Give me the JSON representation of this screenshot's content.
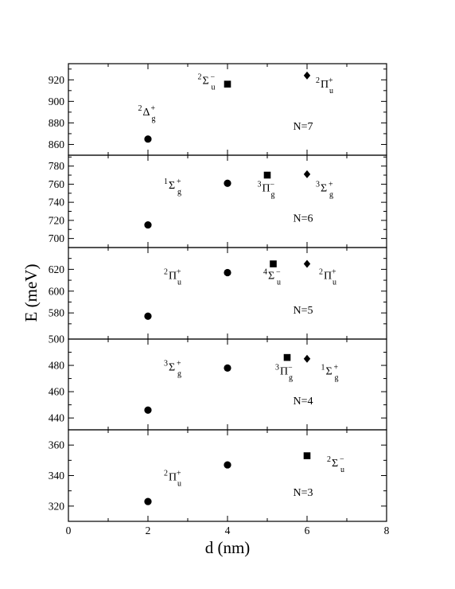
{
  "chart_data": {
    "type": "scatter",
    "xlabel": "d (nm)",
    "ylabel": "E (meV)",
    "xlim": [
      0,
      8
    ],
    "xticks": [
      0,
      2,
      4,
      6,
      8
    ],
    "panels": [
      {
        "n_label": "N=7",
        "ylim": [
          850,
          935
        ],
        "yticks": [
          860,
          880,
          900,
          920
        ],
        "points": [
          {
            "x": 2,
            "y": 865,
            "marker": "circle"
          },
          {
            "x": 4,
            "y": 916,
            "marker": "square"
          },
          {
            "x": 6,
            "y": 924,
            "marker": "diamond"
          }
        ],
        "terms": [
          {
            "pre": "2",
            "sym": "Δ",
            "post": "+",
            "sub": "g",
            "x": 1.75,
            "y": 887
          },
          {
            "pre": "2",
            "sym": "Σ",
            "post": "−",
            "sub": "u",
            "x": 3.25,
            "y": 916
          },
          {
            "pre": "2",
            "sym": "Π",
            "post": "+",
            "sub": "u",
            "x": 6.22,
            "y": 913
          }
        ]
      },
      {
        "n_label": "N=6",
        "ylim": [
          690,
          792
        ],
        "yticks": [
          700,
          720,
          740,
          760,
          780
        ],
        "points": [
          {
            "x": 2,
            "y": 715,
            "marker": "circle"
          },
          {
            "x": 4,
            "y": 761,
            "marker": "circle"
          },
          {
            "x": 5,
            "y": 770,
            "marker": "square"
          },
          {
            "x": 6,
            "y": 771,
            "marker": "diamond"
          }
        ],
        "terms": [
          {
            "pre": "1",
            "sym": "Σ",
            "post": "+",
            "sub": "g",
            "x": 2.4,
            "y": 755
          },
          {
            "pre": "3",
            "sym": "Π",
            "post": "−",
            "sub": "g",
            "x": 4.75,
            "y": 752
          },
          {
            "pre": "3",
            "sym": "Σ",
            "post": "+",
            "sub": "g",
            "x": 6.22,
            "y": 752
          }
        ]
      },
      {
        "n_label": "N=5",
        "ylim": [
          556,
          640
        ],
        "yticks": [
          580,
          600,
          620
        ],
        "points": [
          {
            "x": 2,
            "y": 577,
            "marker": "circle"
          },
          {
            "x": 4,
            "y": 617,
            "marker": "circle"
          },
          {
            "x": 5.15,
            "y": 625,
            "marker": "square"
          },
          {
            "x": 6,
            "y": 625,
            "marker": "diamond"
          }
        ],
        "terms": [
          {
            "pre": "2",
            "sym": "Π",
            "post": "+",
            "sub": "u",
            "x": 2.4,
            "y": 611
          },
          {
            "pre": "4",
            "sym": "Σ",
            "post": "−",
            "sub": "u",
            "x": 4.9,
            "y": 611
          },
          {
            "pre": "2",
            "sym": "Π",
            "post": "+",
            "sub": "u",
            "x": 6.3,
            "y": 611
          }
        ]
      },
      {
        "n_label": "N=4",
        "ylim": [
          431,
          500
        ],
        "yticks": [
          440,
          460,
          480,
          500
        ],
        "points": [
          {
            "x": 2,
            "y": 446,
            "marker": "circle"
          },
          {
            "x": 4,
            "y": 478,
            "marker": "circle"
          },
          {
            "x": 5.5,
            "y": 486,
            "marker": "square"
          },
          {
            "x": 6,
            "y": 485,
            "marker": "diamond"
          }
        ],
        "terms": [
          {
            "pre": "3",
            "sym": "Σ",
            "post": "+",
            "sub": "g",
            "x": 2.4,
            "y": 476
          },
          {
            "pre": "3",
            "sym": "Π",
            "post": "−",
            "sub": "g",
            "x": 5.2,
            "y": 473
          },
          {
            "pre": "1",
            "sym": "Σ",
            "post": "+",
            "sub": "g",
            "x": 6.35,
            "y": 473
          }
        ]
      },
      {
        "n_label": "N=3",
        "ylim": [
          310,
          370
        ],
        "yticks": [
          320,
          340,
          360
        ],
        "points": [
          {
            "x": 2,
            "y": 323,
            "marker": "circle"
          },
          {
            "x": 4,
            "y": 347,
            "marker": "circle"
          },
          {
            "x": 6,
            "y": 353,
            "marker": "square"
          }
        ],
        "terms": [
          {
            "pre": "2",
            "sym": "Π",
            "post": "+",
            "sub": "u",
            "x": 2.4,
            "y": 337
          },
          {
            "pre": "2",
            "sym": "Σ",
            "post": "−",
            "sub": "u",
            "x": 6.5,
            "y": 346
          }
        ]
      }
    ]
  }
}
